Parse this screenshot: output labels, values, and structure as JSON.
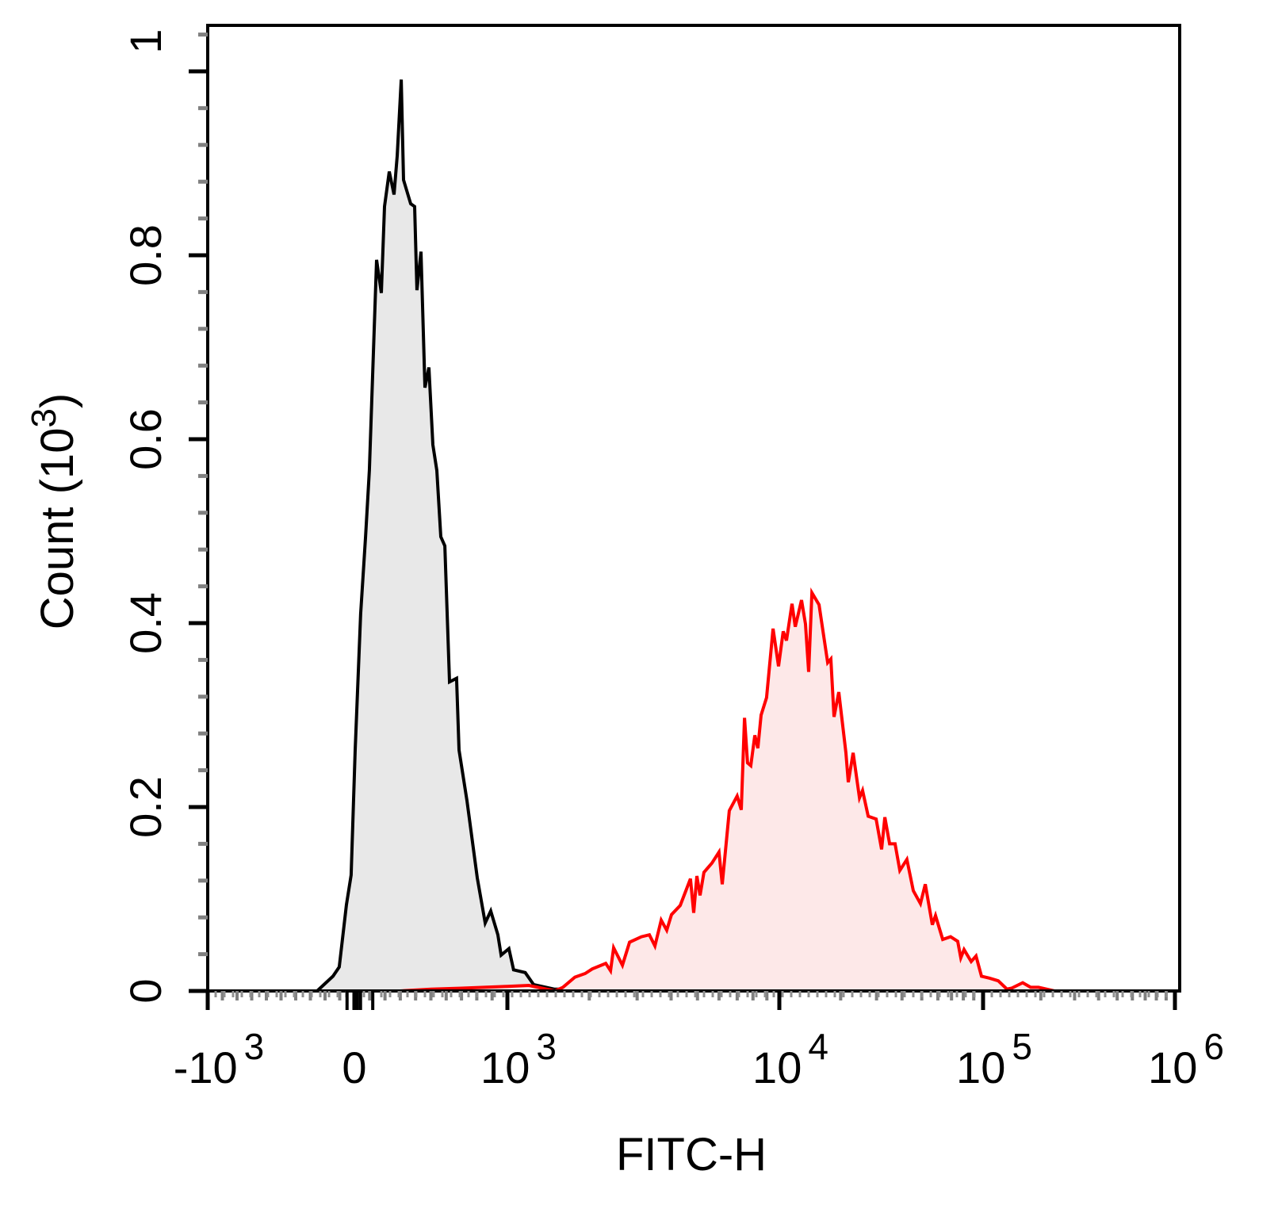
{
  "chart_data": {
    "type": "area",
    "title": "",
    "xlabel": "FITC-H",
    "ylabel": {
      "base": "Count  (10",
      "exp": "3",
      "close": ")"
    },
    "x_scale": "biexponential",
    "xlim": [
      -1000,
      1000000
    ],
    "ylim": [
      0,
      1.05
    ],
    "grid": false,
    "legend": "none",
    "x_ticks": [
      {
        "value": -1000,
        "base": "-10",
        "exp": "3"
      },
      {
        "value": 0,
        "base": "0",
        "exp": ""
      },
      {
        "value": 1000,
        "base": "10",
        "exp": "3"
      },
      {
        "value": 10000,
        "base": "10",
        "exp": "4"
      },
      {
        "value": 100000,
        "base": "10",
        "exp": "5"
      },
      {
        "value": 1000000,
        "base": "10",
        "exp": "6"
      }
    ],
    "y_ticks": [
      {
        "value": 0,
        "label": "0"
      },
      {
        "value": 0.2,
        "label": "0.2"
      },
      {
        "value": 0.4,
        "label": "0.4"
      },
      {
        "value": 0.6,
        "label": "0.6"
      },
      {
        "value": 0.8,
        "label": "0.8"
      },
      {
        "value": 1.0,
        "label": "1"
      }
    ],
    "series": [
      {
        "color": "#000000",
        "fill": "#e8e8e8",
        "x": [
          -254,
          -146,
          -103,
          -54,
          -22,
          5,
          41,
          73,
          98,
          145,
          176,
          197,
          228,
          259,
          280,
          306,
          321,
          368,
          394,
          409,
          435,
          461,
          487,
          513,
          539,
          565,
          591,
          622,
          668,
          684,
          736,
          803,
          855,
          891,
          938,
          959,
          1013,
          1054,
          1163,
          1248,
          1487,
          2000,
          3000,
          5000,
          9000,
          10000,
          12000,
          20000,
          40000,
          100000
        ],
        "y": [
          0,
          0.016,
          0.026,
          0.094,
          0.126,
          0.262,
          0.41,
          0.494,
          0.566,
          0.795,
          0.759,
          0.853,
          0.891,
          0.866,
          0.908,
          0.991,
          0.882,
          0.856,
          0.853,
          0.762,
          0.804,
          0.656,
          0.678,
          0.594,
          0.566,
          0.494,
          0.484,
          0.336,
          0.34,
          0.262,
          0.207,
          0.123,
          0.074,
          0.087,
          0.061,
          0.039,
          0.046,
          0.023,
          0.02,
          0.007,
          0.002,
          0.002,
          0.001,
          0.002,
          0.003,
          0.002,
          0.001,
          0.001,
          0.001,
          0
        ]
      },
      {
        "color": "#ff0000",
        "fill": "#fde8e8",
        "x": [
          300,
          500,
          700,
          1000,
          1200,
          1496,
          1600,
          1771,
          1932,
          2052,
          2301,
          2395,
          2459,
          2649,
          2813,
          3112,
          3327,
          3487,
          3679,
          3856,
          4012,
          4321,
          4713,
          4842,
          4975,
          5110,
          5282,
          5649,
          5999,
          6166,
          6546,
          6998,
          7244,
          7447,
          7640,
          7852,
          8128,
          8337,
          8570,
          8977,
          9484,
          9931,
          10450,
          10840,
          11540,
          11970,
          12850,
          13440,
          13930,
          14450,
          15660,
          17270,
          17910,
          18550,
          19580,
          21230,
          21810,
          23020,
          24730,
          25630,
          27310,
          29850,
          31770,
          32950,
          34770,
          37000,
          39020,
          42290,
          45450,
          49290,
          52020,
          56370,
          58420,
          63390,
          69230,
          75050,
          77770,
          80680,
          87430,
          92300,
          98230,
          107900,
          119900,
          133100,
          140900,
          160900,
          177000,
          194500,
          235500
        ],
        "y": [
          0,
          0.002,
          0.003,
          0.005,
          0.006,
          0,
          0.004,
          0.015,
          0.019,
          0.024,
          0.03,
          0.022,
          0.047,
          0.028,
          0.053,
          0.059,
          0.061,
          0.049,
          0.077,
          0.066,
          0.083,
          0.093,
          0.122,
          0.085,
          0.125,
          0.104,
          0.129,
          0.139,
          0.151,
          0.116,
          0.196,
          0.212,
          0.197,
          0.297,
          0.248,
          0.245,
          0.278,
          0.264,
          0.3,
          0.319,
          0.394,
          0.353,
          0.391,
          0.381,
          0.421,
          0.396,
          0.425,
          0.399,
          0.347,
          0.433,
          0.42,
          0.357,
          0.361,
          0.298,
          0.325,
          0.259,
          0.227,
          0.259,
          0.21,
          0.218,
          0.19,
          0.187,
          0.154,
          0.189,
          0.16,
          0.16,
          0.131,
          0.143,
          0.109,
          0.095,
          0.116,
          0.072,
          0.082,
          0.056,
          0.059,
          0.054,
          0.036,
          0.045,
          0.032,
          0.038,
          0.016,
          0.014,
          0.011,
          0.002,
          0.003,
          0.009,
          0.004,
          0.004,
          0
        ]
      }
    ]
  }
}
